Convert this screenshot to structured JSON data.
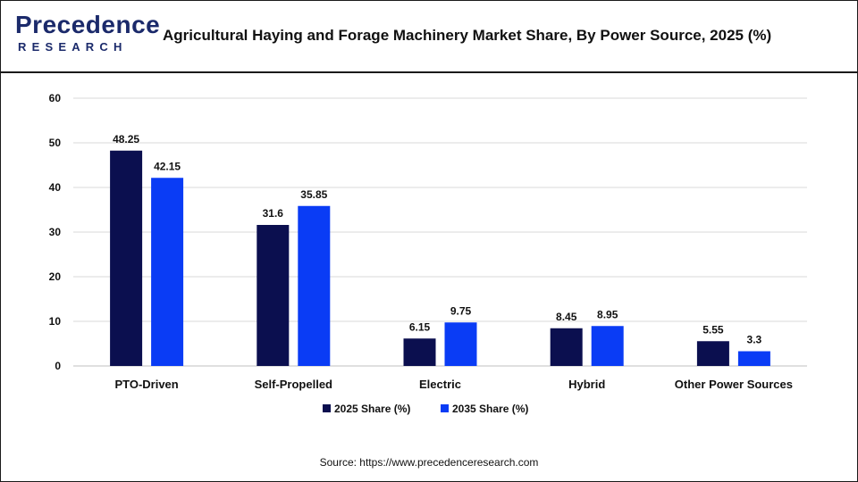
{
  "brand": {
    "logo_top": "Precedence",
    "logo_bottom": "RESEARCH",
    "colors": {
      "navy": "#1b2a6b",
      "blue": "#2f5cf0"
    }
  },
  "title": "Agricultural Haying and Forage Machinery Market Share, By Power Source, 2025 (%)",
  "source": "Source: https://www.precedenceresearch.com",
  "chart_data": {
    "type": "bar",
    "categories": [
      "PTO-Driven",
      "Self-Propelled",
      "Electric",
      "Hybrid",
      "Other Power Sources"
    ],
    "series": [
      {
        "name": "2025 Share (%)",
        "color": "#0b0f4f",
        "values": [
          48.25,
          31.6,
          6.15,
          8.45,
          5.55
        ]
      },
      {
        "name": "2035 Share (%)",
        "color": "#0a3cf5",
        "values": [
          42.15,
          35.85,
          9.75,
          8.95,
          3.3
        ]
      }
    ],
    "ylim": [
      0,
      60
    ],
    "yticks": [
      0,
      10,
      20,
      30,
      40,
      50,
      60
    ],
    "grid": true,
    "legend_position": "bottom",
    "data_labels": true
  }
}
